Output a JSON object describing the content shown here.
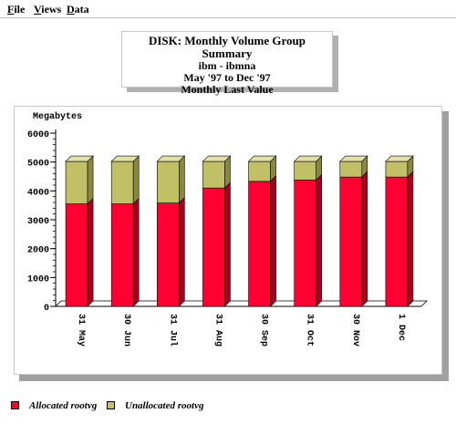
{
  "menu": {
    "items": [
      {
        "mnemonic": "F",
        "rest": "ile"
      },
      {
        "mnemonic": "V",
        "rest": "iews"
      },
      {
        "mnemonic": "D",
        "rest": "ata"
      }
    ]
  },
  "title": {
    "line1": "DISK: Monthly Volume Group Summary",
    "line2": "ibm - ibmna",
    "line3": "May '97 to Dec '97",
    "line4": "Monthly Last Value"
  },
  "colors": {
    "allocated": "#ff0033",
    "allocated_dark": "#a8001e",
    "unallocated": "#c2c067",
    "unallocated_dark": "#8a8840",
    "unallocated_top": "#e2e0a6",
    "allocated_top": "#ff6680"
  },
  "chart_data": {
    "type": "bar",
    "stacked": true,
    "ylabel": "Megabytes",
    "ylim": [
      0,
      6000
    ],
    "yticks": [
      0,
      1000,
      2000,
      3000,
      4000,
      5000,
      6000
    ],
    "categories": [
      "31 May",
      "30 Jun",
      "31 Jul",
      "31 Aug",
      "30 Sep",
      "31 Oct",
      "30 Nov",
      "1 Dec"
    ],
    "series": [
      {
        "name": "Allocated rootvg",
        "values": [
          3550,
          3550,
          3580,
          4100,
          4330,
          4380,
          4480,
          4480
        ]
      },
      {
        "name": "Unallocated rootvg",
        "values": [
          1470,
          1470,
          1440,
          920,
          690,
          640,
          540,
          540
        ]
      }
    ],
    "legend_position": "bottom-left"
  }
}
